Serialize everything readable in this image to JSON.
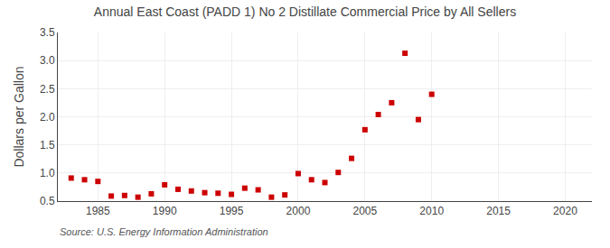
{
  "chart_data": {
    "type": "scatter",
    "title": "Annual East Coast (PADD 1) No 2 Distillate Commercial Price by All Sellers",
    "ylabel": "Dollars per Gallon",
    "annotations": [
      "Source: U.S. Energy Information Administration"
    ],
    "x": [
      1983,
      1984,
      1985,
      1986,
      1987,
      1988,
      1989,
      1990,
      1991,
      1992,
      1993,
      1994,
      1995,
      1996,
      1997,
      1998,
      1999,
      2000,
      2001,
      2002,
      2003,
      2004,
      2005,
      2006,
      2007,
      2008,
      2009,
      2010
    ],
    "values": [
      0.91,
      0.88,
      0.85,
      0.59,
      0.6,
      0.57,
      0.63,
      0.79,
      0.71,
      0.68,
      0.65,
      0.64,
      0.62,
      0.73,
      0.7,
      0.57,
      0.61,
      0.99,
      0.88,
      0.83,
      1.01,
      1.26,
      1.77,
      2.04,
      2.25,
      3.13,
      1.95,
      2.4
    ],
    "color": "#cc0000",
    "marker": "square",
    "xlim": [
      1982,
      2022
    ],
    "xticks": [
      1985,
      1990,
      1995,
      2000,
      2005,
      2010,
      2015,
      2020
    ],
    "ylim": [
      0.5,
      3.5
    ],
    "yticks": [
      0.5,
      {
        "value": 1.0,
        "label": "1.0"
      },
      1.5,
      {
        "value": 2.0,
        "label": "2.0"
      },
      2.5,
      {
        "value": 3.0,
        "label": "3.0"
      },
      3.5
    ],
    "grid": true
  }
}
